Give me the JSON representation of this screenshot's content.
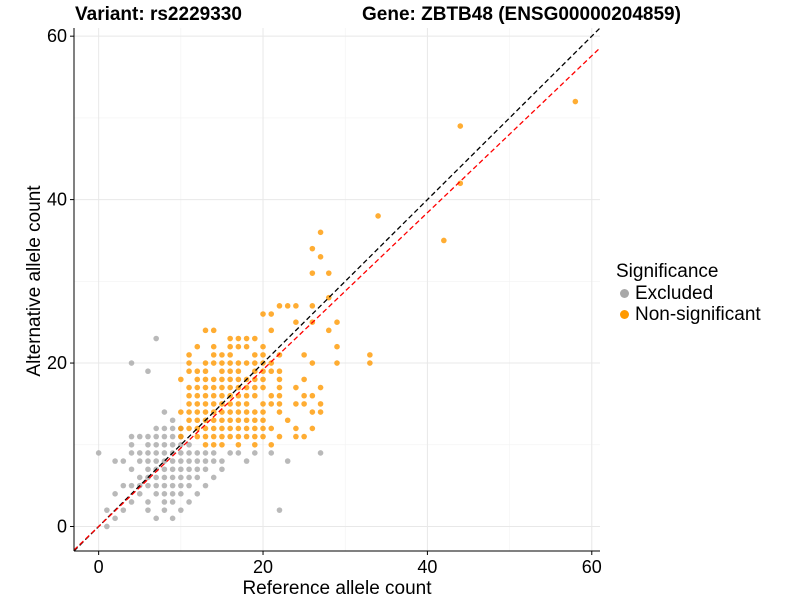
{
  "title": {
    "variant": "Variant: rs2229330",
    "gene": "Gene: ZBTB48 (ENSG00000204859)"
  },
  "chart_data": {
    "type": "scatter",
    "xlabel": "Reference allele count",
    "ylabel": "Alternative allele count",
    "xlim": [
      -3,
      61
    ],
    "ylim": [
      -3,
      61
    ],
    "x_ticks": [
      "0",
      "20",
      "40",
      "60"
    ],
    "y_ticks": [
      "0",
      "20",
      "40",
      "60"
    ],
    "grid": true,
    "legend_position": "right",
    "legend_title": "Significance",
    "reference_lines": [
      {
        "name": "identity",
        "slope": 1.0,
        "intercept": 0,
        "color": "#000000",
        "style": "dashed"
      },
      {
        "name": "fit",
        "slope": 0.96,
        "intercept": 0,
        "color": "#ff0000",
        "style": "dashed"
      }
    ],
    "series": [
      {
        "name": "Excluded",
        "color": "#a8a8a8",
        "points": [
          [
            0,
            9
          ],
          [
            1,
            2
          ],
          [
            1,
            0
          ],
          [
            2,
            1
          ],
          [
            2,
            4
          ],
          [
            2,
            8
          ],
          [
            3,
            2
          ],
          [
            3,
            5
          ],
          [
            3,
            8
          ],
          [
            4,
            3
          ],
          [
            4,
            5
          ],
          [
            4,
            7
          ],
          [
            4,
            9
          ],
          [
            4,
            10
          ],
          [
            4,
            11
          ],
          [
            4,
            20
          ],
          [
            5,
            4
          ],
          [
            5,
            5
          ],
          [
            5,
            6
          ],
          [
            5,
            8
          ],
          [
            5,
            9
          ],
          [
            5,
            11
          ],
          [
            6,
            2
          ],
          [
            6,
            3
          ],
          [
            6,
            5
          ],
          [
            6,
            6
          ],
          [
            6,
            7
          ],
          [
            6,
            8
          ],
          [
            6,
            9
          ],
          [
            6,
            10
          ],
          [
            6,
            11
          ],
          [
            6,
            19
          ],
          [
            7,
            1
          ],
          [
            7,
            4
          ],
          [
            7,
            5
          ],
          [
            7,
            6
          ],
          [
            7,
            7
          ],
          [
            7,
            8
          ],
          [
            7,
            9
          ],
          [
            7,
            10
          ],
          [
            7,
            11
          ],
          [
            7,
            12
          ],
          [
            7,
            23
          ],
          [
            8,
            2
          ],
          [
            8,
            3
          ],
          [
            8,
            4
          ],
          [
            8,
            5
          ],
          [
            8,
            6
          ],
          [
            8,
            7
          ],
          [
            8,
            8
          ],
          [
            8,
            9
          ],
          [
            8,
            10
          ],
          [
            8,
            11
          ],
          [
            8,
            12
          ],
          [
            8,
            14
          ],
          [
            9,
            1
          ],
          [
            9,
            3
          ],
          [
            9,
            4
          ],
          [
            9,
            5
          ],
          [
            9,
            6
          ],
          [
            9,
            7
          ],
          [
            9,
            8
          ],
          [
            9,
            9
          ],
          [
            9,
            10
          ],
          [
            9,
            11
          ],
          [
            9,
            12
          ],
          [
            9,
            13
          ],
          [
            10,
            2
          ],
          [
            10,
            4
          ],
          [
            10,
            5
          ],
          [
            10,
            6
          ],
          [
            10,
            7
          ],
          [
            10,
            8
          ],
          [
            10,
            9
          ],
          [
            10,
            10
          ],
          [
            10,
            11
          ],
          [
            10,
            12
          ],
          [
            11,
            3
          ],
          [
            11,
            5
          ],
          [
            11,
            6
          ],
          [
            11,
            7
          ],
          [
            11,
            8
          ],
          [
            11,
            9
          ],
          [
            11,
            10
          ],
          [
            12,
            4
          ],
          [
            12,
            6
          ],
          [
            12,
            7
          ],
          [
            12,
            8
          ],
          [
            12,
            9
          ],
          [
            13,
            5
          ],
          [
            13,
            7
          ],
          [
            13,
            8
          ],
          [
            13,
            9
          ],
          [
            14,
            6
          ],
          [
            14,
            8
          ],
          [
            14,
            9
          ],
          [
            15,
            7
          ],
          [
            15,
            8
          ],
          [
            16,
            9
          ],
          [
            17,
            9
          ],
          [
            18,
            8
          ],
          [
            19,
            9
          ],
          [
            21,
            9
          ],
          [
            22,
            2
          ],
          [
            23,
            8
          ],
          [
            27,
            9
          ]
        ]
      },
      {
        "name": "Non-significant",
        "color": "#ff9900",
        "points": [
          [
            10,
            11
          ],
          [
            10,
            12
          ],
          [
            10,
            14
          ],
          [
            10,
            18
          ],
          [
            11,
            12
          ],
          [
            11,
            13
          ],
          [
            11,
            14
          ],
          [
            11,
            15
          ],
          [
            11,
            16
          ],
          [
            11,
            17
          ],
          [
            11,
            19
          ],
          [
            11,
            20
          ],
          [
            11,
            21
          ],
          [
            12,
            11
          ],
          [
            12,
            12
          ],
          [
            12,
            13
          ],
          [
            12,
            14
          ],
          [
            12,
            15
          ],
          [
            12,
            16
          ],
          [
            12,
            17
          ],
          [
            12,
            18
          ],
          [
            12,
            19
          ],
          [
            12,
            22
          ],
          [
            13,
            10
          ],
          [
            13,
            11
          ],
          [
            13,
            12
          ],
          [
            13,
            13
          ],
          [
            13,
            14
          ],
          [
            13,
            15
          ],
          [
            13,
            16
          ],
          [
            13,
            17
          ],
          [
            13,
            18
          ],
          [
            13,
            19
          ],
          [
            13,
            20
          ],
          [
            13,
            24
          ],
          [
            14,
            10
          ],
          [
            14,
            11
          ],
          [
            14,
            12
          ],
          [
            14,
            13
          ],
          [
            14,
            14
          ],
          [
            14,
            15
          ],
          [
            14,
            16
          ],
          [
            14,
            17
          ],
          [
            14,
            18
          ],
          [
            14,
            20
          ],
          [
            14,
            21
          ],
          [
            14,
            22
          ],
          [
            14,
            24
          ],
          [
            15,
            10
          ],
          [
            15,
            11
          ],
          [
            15,
            12
          ],
          [
            15,
            13
          ],
          [
            15,
            14
          ],
          [
            15,
            15
          ],
          [
            15,
            16
          ],
          [
            15,
            17
          ],
          [
            15,
            18
          ],
          [
            15,
            19
          ],
          [
            15,
            20
          ],
          [
            15,
            21
          ],
          [
            16,
            11
          ],
          [
            16,
            12
          ],
          [
            16,
            13
          ],
          [
            16,
            14
          ],
          [
            16,
            15
          ],
          [
            16,
            16
          ],
          [
            16,
            17
          ],
          [
            16,
            18
          ],
          [
            16,
            19
          ],
          [
            16,
            20
          ],
          [
            16,
            21
          ],
          [
            16,
            22
          ],
          [
            16,
            23
          ],
          [
            17,
            10
          ],
          [
            17,
            11
          ],
          [
            17,
            12
          ],
          [
            17,
            13
          ],
          [
            17,
            14
          ],
          [
            17,
            15
          ],
          [
            17,
            16
          ],
          [
            17,
            17
          ],
          [
            17,
            18
          ],
          [
            17,
            19
          ],
          [
            17,
            20
          ],
          [
            17,
            22
          ],
          [
            17,
            23
          ],
          [
            18,
            11
          ],
          [
            18,
            12
          ],
          [
            18,
            13
          ],
          [
            18,
            14
          ],
          [
            18,
            15
          ],
          [
            18,
            16
          ],
          [
            18,
            17
          ],
          [
            18,
            18
          ],
          [
            18,
            20
          ],
          [
            18,
            22
          ],
          [
            18,
            23
          ],
          [
            19,
            10
          ],
          [
            19,
            11
          ],
          [
            19,
            12
          ],
          [
            19,
            13
          ],
          [
            19,
            14
          ],
          [
            19,
            16
          ],
          [
            19,
            17
          ],
          [
            19,
            18
          ],
          [
            19,
            19
          ],
          [
            19,
            20
          ],
          [
            19,
            21
          ],
          [
            19,
            23
          ],
          [
            20,
            11
          ],
          [
            20,
            12
          ],
          [
            20,
            13
          ],
          [
            20,
            14
          ],
          [
            20,
            15
          ],
          [
            20,
            17
          ],
          [
            20,
            18
          ],
          [
            20,
            19
          ],
          [
            20,
            20
          ],
          [
            20,
            21
          ],
          [
            20,
            22
          ],
          [
            20,
            26
          ],
          [
            21,
            10
          ],
          [
            21,
            12
          ],
          [
            21,
            15
          ],
          [
            21,
            16
          ],
          [
            21,
            19
          ],
          [
            21,
            20
          ],
          [
            21,
            24
          ],
          [
            21,
            26
          ],
          [
            22,
            11
          ],
          [
            22,
            14
          ],
          [
            22,
            15
          ],
          [
            22,
            16
          ],
          [
            22,
            17
          ],
          [
            22,
            18
          ],
          [
            22,
            19
          ],
          [
            22,
            21
          ],
          [
            22,
            27
          ],
          [
            23,
            13
          ],
          [
            23,
            27
          ],
          [
            24,
            11
          ],
          [
            24,
            12
          ],
          [
            24,
            15
          ],
          [
            24,
            17
          ],
          [
            24,
            25
          ],
          [
            24,
            27
          ],
          [
            25,
            11
          ],
          [
            25,
            15
          ],
          [
            25,
            16
          ],
          [
            25,
            18
          ],
          [
            25,
            21
          ],
          [
            26,
            12
          ],
          [
            26,
            14
          ],
          [
            26,
            16
          ],
          [
            26,
            20
          ],
          [
            26,
            25
          ],
          [
            26,
            27
          ],
          [
            26,
            31
          ],
          [
            26,
            34
          ],
          [
            27,
            14
          ],
          [
            27,
            15
          ],
          [
            27,
            17
          ],
          [
            27,
            33
          ],
          [
            27,
            36
          ],
          [
            28,
            24
          ],
          [
            28,
            28
          ],
          [
            28,
            31
          ],
          [
            29,
            20
          ],
          [
            29,
            22
          ],
          [
            29,
            25
          ],
          [
            33,
            20
          ],
          [
            33,
            21
          ],
          [
            34,
            38
          ],
          [
            42,
            35
          ],
          [
            44,
            42
          ],
          [
            44,
            49
          ],
          [
            58,
            52
          ]
        ]
      }
    ]
  }
}
